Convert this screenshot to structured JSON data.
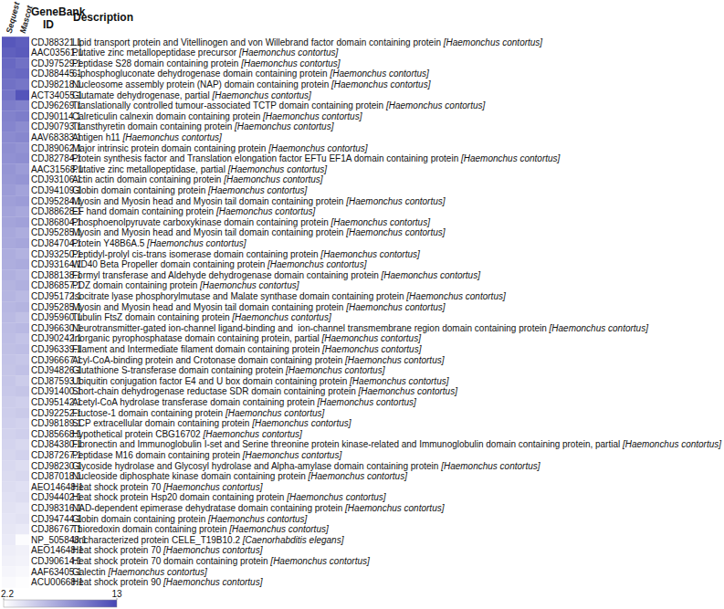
{
  "chart_data": {
    "type": "heatmap",
    "x": [
      "Sequest",
      "Mascot"
    ],
    "headers": {
      "id": "GeneBank ID",
      "description": "Description"
    },
    "categories": [
      "CDJ88321.1",
      "AAC03561.1",
      "CDJ97529.1",
      "CDJ88445.1",
      "CDJ98218.1",
      "ACT34055.1",
      "CDJ96269.1",
      "CDJ90114.1",
      "CDJ90793.1",
      "AAV68383.1",
      "CDJ89062.1",
      "CDJ82784.1",
      "AAC31568.1",
      "CDJ93106.1",
      "CDJ94109.1",
      "CDJ95284.1",
      "CDJ88628.1",
      "CDJ86804.1",
      "CDJ95285.1",
      "CDJ84704.1",
      "CDJ93250.1",
      "CDJ93164.1",
      "CDJ88138.1",
      "CDJ86857.1",
      "CDJ95172.1",
      "CDJ95285.1",
      "CDJ95960.1",
      "CDJ96630.1",
      "CDJ90242.1",
      "CDJ96339.1",
      "CDJ96667.1",
      "CDJ94826.1",
      "CDJ87593.1",
      "CDJ91400.1",
      "CDJ95142.1",
      "CDJ92252.1",
      "CDJ98189.1",
      "CDJ85668.1",
      "CDJ84380.1",
      "CDJ87267.1",
      "CDJ98230.1",
      "CDJ87018.1",
      "AEO14648.1",
      "CDJ94402.1",
      "CDJ98316.1",
      "CDJ94744.1",
      "CDJ86767.1",
      "NP_505848.1",
      "AEO14648.1",
      "CDJ90614.1",
      "AAF63405.1",
      "ACU00668.1"
    ],
    "descriptions": [
      "Lipid transport protein and Vitellinogen and von Willebrand factor domain containing protein [Haemonchus contortus]",
      "Putative zinc metallopeptidase precursor [Haemonchus contortus]",
      "Peptidase S28 domain containing protein [Haemonchus contortus]",
      "6-phosphogluconate dehydrogenase domain containing protein [Haemonchus contortus]",
      "Nucleosome assembly protein (NAP) domain containing protein [Haemonchus contortus]",
      "Glutamate dehydrogenase, partial [Haemonchus contortus]",
      "Translationally controlled tumour-associated TCTP domain containing protein [Haemonchus contortus]",
      "Calreticulin calnexin domain containing protein [Haemonchus contortus]",
      "Transthyretin domain containing protein [Haemonchus contortus]",
      "Antigen h11 [Haemonchus contortus]",
      "Major intrinsic protein domain containing protein [Haemonchus contortus]",
      "Protein synthesis factor and Translation elongation factor EFTu EF1A domain containing protein [Haemonchus contortus]",
      "Putative zinc metallopeptidase, partial [Haemonchus contortus]",
      "Actin actin domain containing protein [Haemonchus contortus]",
      "Globin domain containing protein [Haemonchus contortus]",
      "Myosin and Myosin head and Myosin tail domain containing protein [Haemonchus contortus]",
      "EF hand domain containing protein [Haemonchus contortus]",
      "Phosphoenolpyruvate carboxykinase domain containing protein [Haemonchus contortus]",
      "Myosin and Myosin head and Myosin tail domain containing protein [Haemonchus contortus]",
      "Protein Y48B6A.5 [Haemonchus contortus]",
      "Peptidyl-prolyl cis-trans isomerase domain containing protein [Haemonchus contortus]",
      "WD40 Beta Propeller domain containing protein [Haemonchus contortus]",
      "Formyl transferase and Aldehyde dehydrogenase domain containing protein [Haemonchus contortus]",
      "PDZ domain containing protein [Haemonchus contortus]",
      "Isocitrate lyase phosphorylmutase and Malate synthase domain containing protein [Haemonchus contortus]",
      "Myosin and Myosin head and Myosin tail domain containing protein [Haemonchus contortus]",
      "Tubulin FtsZ domain containing protein [Haemonchus contortus]",
      "Neurotransmitter-gated ion-channel ligand-binding and  ion-channel transmembrane region domain containing protein [Haemonchus contortus]",
      "Inorganic pyrophosphatase domain containing protein, partial [Haemonchus contortus]",
      "Filament and Intermediate filament domain containing protein [Haemonchus contortus]",
      "Acyl-CoA-binding protein and Crotonase domain containing protein [Haemonchus contortus]",
      "Glutathione S-transferase domain containing protein [Haemonchus contortus]",
      "Ubiquitin conjugation factor E4 and U box domain containing protein [Haemonchus contortus]",
      "Short-chain dehydrogenase reductase SDR domain containing protein [Haemonchus contortus]",
      "Acetyl-CoA hydrolase transferase domain containing protein [Haemonchus contortus]",
      "Fructose-1 domain containing protein [Haemonchus contortus]",
      "SCP extracellular domain containing protein [Haemonchus contortus]",
      "Hypothetical protein CBG16702 [Haemonchus contortus]",
      "Fibronectin and Immunoglobulin I-set and Serine threonine protein kinase-related and Immunoglobulin domain containing protein, partial [Haemonchus contortus]",
      "Peptidase M16 domain containing protein [Haemonchus contortus]",
      "Glycoside hydrolase and Glycosyl hydrolase and Alpha-amylase domain containing protein [Haemonchus contortus]",
      "Nucleoside diphosphate kinase domain containing protein [Haemonchus contortus]",
      "Heat shock protein 70 [Haemonchus contortus]",
      "Heat shock protein Hsp20 domain containing protein [Haemonchus contortus]",
      "NAD-dependent epimerase dehydratase domain containing protein [Haemonchus contortus]",
      "Globin domain containing protein [Haemonchus contortus]",
      "Thioredoxin domain containing protein [Haemonchus contortus]",
      "Uncharacterized protein CELE_T19B10.2 [Caenorhabditis elegans]",
      "Heat shock protein 70 [Haemonchus contortus]",
      "Heat shock protein 70 domain containing protein [Haemonchus contortus]",
      "Galectin [Haemonchus contortus]",
      "Heat shock protein 90 [Haemonchus contortus]"
    ],
    "cells": [
      [
        12.0,
        11.6
      ],
      [
        11.5,
        11.8
      ],
      [
        11.0,
        10.5
      ],
      [
        10.8,
        11.0
      ],
      [
        10.5,
        10.2
      ],
      [
        10.3,
        12.2
      ],
      [
        9.8,
        9.5
      ],
      [
        9.5,
        9.8
      ],
      [
        9.3,
        8.9
      ],
      [
        9.0,
        9.2
      ],
      [
        8.8,
        8.5
      ],
      [
        8.6,
        8.8
      ],
      [
        8.4,
        8.0
      ],
      [
        8.2,
        8.4
      ],
      [
        8.0,
        7.6
      ],
      [
        7.8,
        8.0
      ],
      [
        7.6,
        7.3
      ],
      [
        7.5,
        7.7
      ],
      [
        7.3,
        7.0
      ],
      [
        7.2,
        7.4
      ],
      [
        7.0,
        6.7
      ],
      [
        6.9,
        7.1
      ],
      [
        6.8,
        6.5
      ],
      [
        6.6,
        6.8
      ],
      [
        6.5,
        6.2
      ],
      [
        6.4,
        6.6
      ],
      [
        6.2,
        5.9
      ],
      [
        6.1,
        6.3
      ],
      [
        6.0,
        5.7
      ],
      [
        5.9,
        6.0
      ],
      [
        5.7,
        5.5
      ],
      [
        5.6,
        5.8
      ],
      [
        5.5,
        5.2
      ],
      [
        5.4,
        5.6
      ],
      [
        5.2,
        5.0
      ],
      [
        5.1,
        5.3
      ],
      [
        5.0,
        4.8
      ],
      [
        4.8,
        5.0
      ],
      [
        4.7,
        4.5
      ],
      [
        4.6,
        4.8
      ],
      [
        4.4,
        4.2
      ],
      [
        4.3,
        4.5
      ],
      [
        4.2,
        4.0
      ],
      [
        4.0,
        4.2
      ],
      [
        3.9,
        3.7
      ],
      [
        3.7,
        3.9
      ],
      [
        3.6,
        3.4
      ],
      [
        3.4,
        2.4
      ],
      [
        3.2,
        3.0
      ],
      [
        3.0,
        2.9
      ],
      [
        2.8,
        2.6
      ],
      [
        2.5,
        2.3
      ]
    ],
    "colorbar": {
      "range": [
        2.2,
        13
      ],
      "ticks": [
        2.2,
        13
      ]
    },
    "color": "#4646b4"
  }
}
